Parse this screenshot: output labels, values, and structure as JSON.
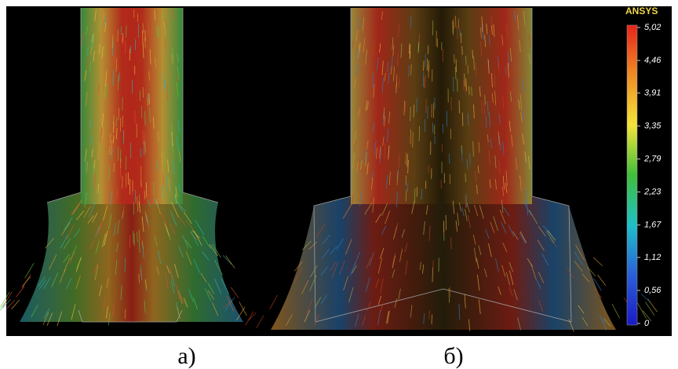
{
  "logo": "ANSYS",
  "colorbar": {
    "colors": [
      "#e8231c",
      "#f08c24",
      "#f4e43a",
      "#3fbf3a",
      "#1fc0c8",
      "#2a5fd8",
      "#1a1ac8"
    ],
    "ticks": [
      {
        "value": 5.02,
        "label": "5,02"
      },
      {
        "value": 4.46,
        "label": "4,46"
      },
      {
        "value": 3.91,
        "label": "3,91"
      },
      {
        "value": 3.35,
        "label": "3,35"
      },
      {
        "value": 2.79,
        "label": "2,79"
      },
      {
        "value": 2.23,
        "label": "2,23"
      },
      {
        "value": 1.67,
        "label": "1,67"
      },
      {
        "value": 1.12,
        "label": "1,12"
      },
      {
        "value": 0.56,
        "label": "0,56"
      },
      0
    ]
  },
  "panels": [
    {
      "label": "a)"
    },
    {
      "label": "б)"
    }
  ]
}
